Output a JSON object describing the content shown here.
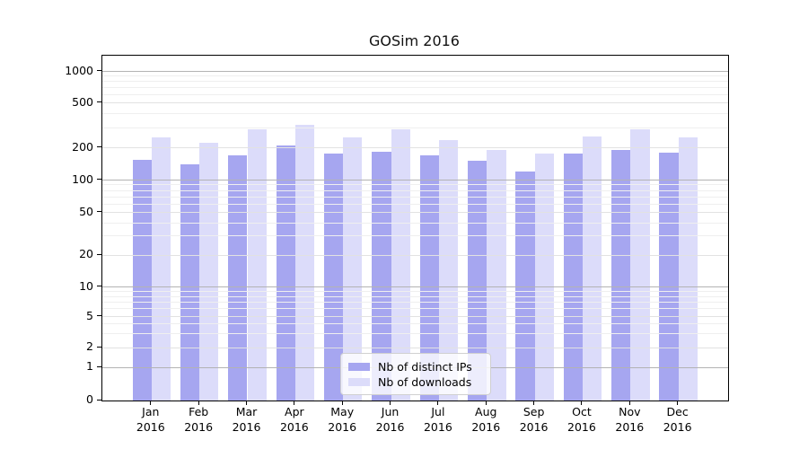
{
  "title": "GOSim 2016",
  "colors": {
    "ips": "#a6a6f0",
    "downloads": "#dcdcfa",
    "grid_major": "#b3b3b3",
    "grid_mid": "#e2e2e2",
    "grid_minor": "#efefef"
  },
  "legend": {
    "items": [
      {
        "label": "Nb of distinct IPs",
        "color_key": "ips"
      },
      {
        "label": "Nb of downloads",
        "color_key": "downloads"
      }
    ]
  },
  "chart_data": {
    "type": "bar",
    "title": "GOSim 2016",
    "categories": [
      "Jan 2016",
      "Feb 2016",
      "Mar 2016",
      "Apr 2016",
      "May 2016",
      "Jun 2016",
      "Jul 2016",
      "Aug 2016",
      "Sep 2016",
      "Oct 2016",
      "Nov 2016",
      "Dec 2016"
    ],
    "series": [
      {
        "name": "Nb of distinct IPs",
        "color_key": "ips",
        "values": [
          155,
          140,
          170,
          210,
          175,
          185,
          170,
          150,
          120,
          175,
          190,
          180
        ]
      },
      {
        "name": "Nb of downloads",
        "color_key": "downloads",
        "values": [
          245,
          220,
          290,
          320,
          245,
          290,
          235,
          190,
          175,
          250,
          290,
          245
        ]
      }
    ],
    "xlabel": "",
    "ylabel": "",
    "yscale": "symlog",
    "y_ticks": [
      0,
      1,
      2,
      5,
      10,
      20,
      50,
      100,
      200,
      500,
      1000
    ],
    "ylim": [
      0,
      1400
    ],
    "grid": true,
    "legend_position": "lower center"
  }
}
